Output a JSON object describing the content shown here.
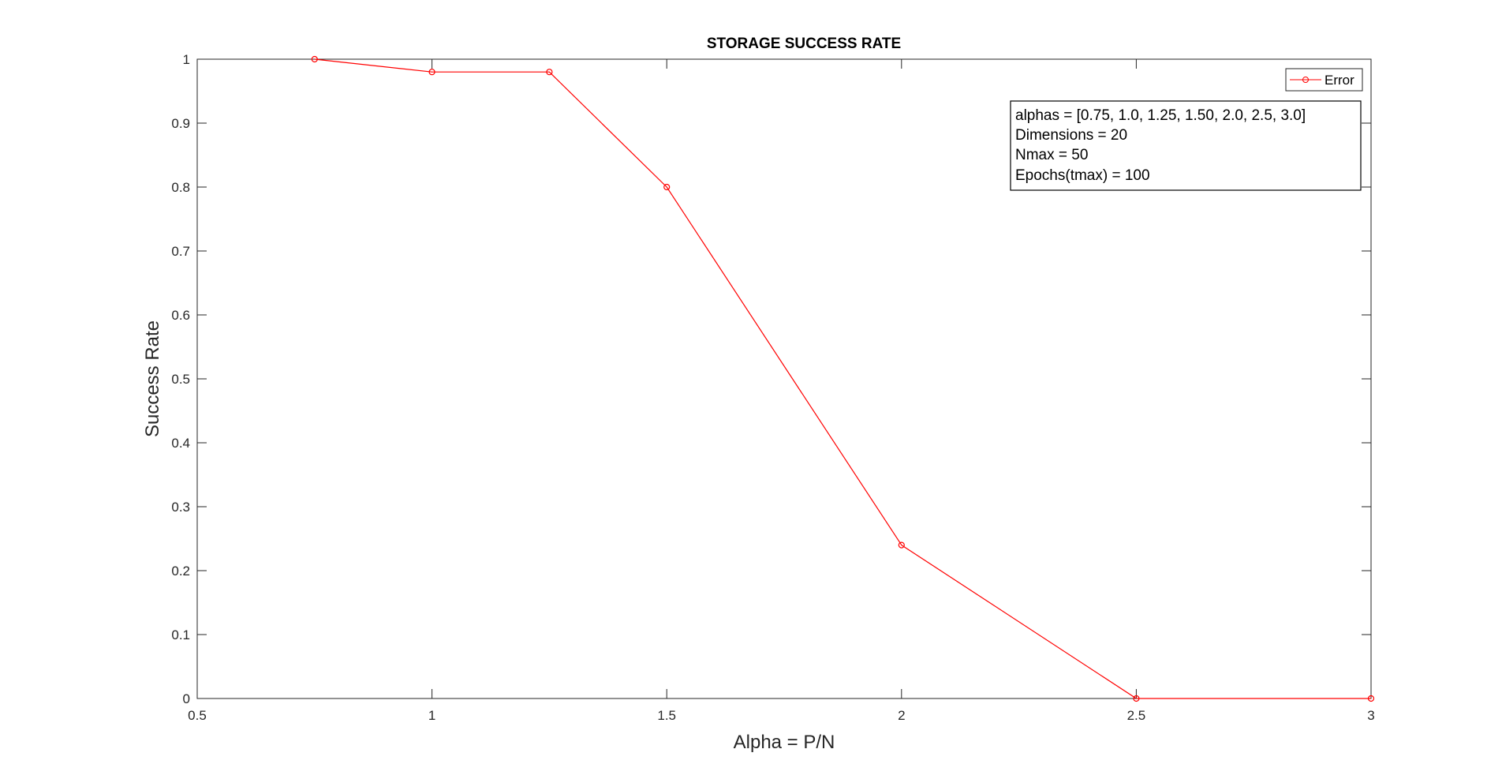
{
  "chart_data": {
    "type": "line",
    "title": "STORAGE SUCCESS RATE",
    "xlabel": "Alpha = P/N",
    "ylabel": "Success Rate",
    "xlim": [
      0.5,
      3
    ],
    "ylim": [
      0,
      1
    ],
    "x_ticks": [
      "0.5",
      "1",
      "1.5",
      "2",
      "2.5",
      "3"
    ],
    "y_ticks": [
      "0",
      "0.1",
      "0.2",
      "0.3",
      "0.4",
      "0.5",
      "0.6",
      "0.7",
      "0.8",
      "0.9",
      "1"
    ],
    "grid": false,
    "legend_position": "top-right",
    "series": [
      {
        "name": "Error",
        "color": "#ff0000",
        "marker": "circle",
        "x": [
          0.75,
          1.0,
          1.25,
          1.5,
          2.0,
          2.5,
          3.0
        ],
        "y": [
          1.0,
          0.98,
          0.98,
          0.8,
          0.24,
          0.0,
          0.0
        ]
      }
    ],
    "annotation": [
      "alphas = [0.75, 1.0, 1.25, 1.50, 2.0, 2.5, 3.0]",
      "Dimensions = 20",
      "Nmax = 50",
      "Epochs(tmax) = 100"
    ]
  }
}
